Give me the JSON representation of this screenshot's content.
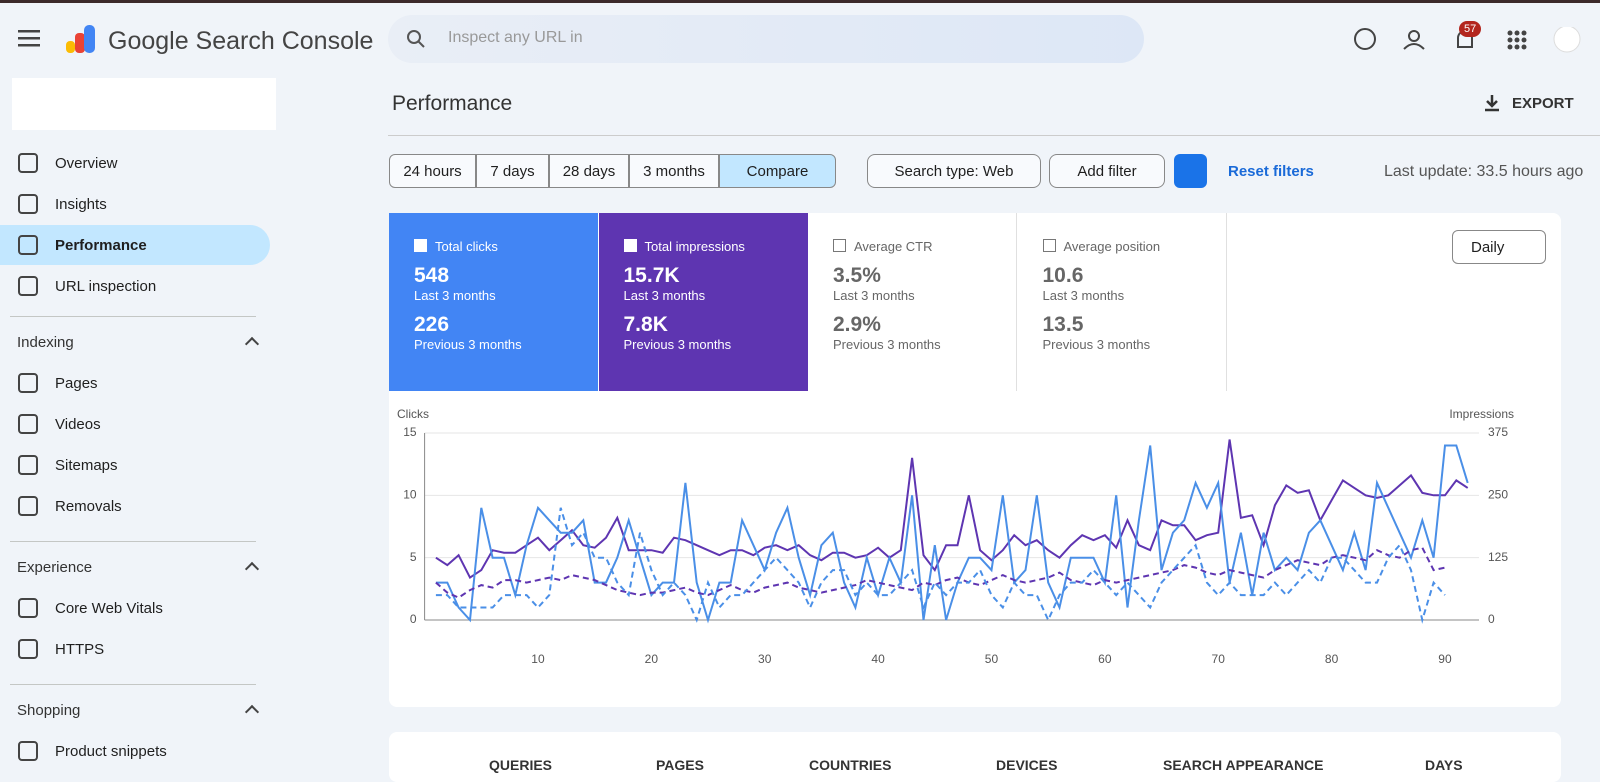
{
  "header": {
    "title": "Google Search Console",
    "search_placeholder": "Inspect any URL in",
    "notifications": 57
  },
  "sidebar": {
    "items": [
      "Overview",
      "Insights",
      "Performance",
      "URL inspection"
    ],
    "sections": [
      {
        "title": "Indexing",
        "items": [
          "Pages",
          "Videos",
          "Sitemaps",
          "Removals"
        ]
      },
      {
        "title": "Experience",
        "items": [
          "Core Web Vitals",
          "HTTPS"
        ]
      },
      {
        "title": "Shopping",
        "items": [
          "Product snippets"
        ]
      }
    ]
  },
  "page": {
    "title": "Performance",
    "export": "EXPORT",
    "date_ranges": [
      "24 hours",
      "7 days",
      "28 days",
      "3 months",
      "Compare"
    ],
    "search_type": "Search type: Web",
    "add_filter": "Add filter",
    "reset": "Reset filters",
    "last_update": "Last update: 33.5 hours ago",
    "granularity": "Daily",
    "metrics": [
      {
        "label": "Total clicks",
        "current": "548",
        "current_period": "Last 3 months",
        "previous": "226",
        "previous_period": "Previous 3 months"
      },
      {
        "label": "Total impressions",
        "current": "15.7K",
        "current_period": "Last 3 months",
        "previous": "7.8K",
        "previous_period": "Previous 3 months"
      },
      {
        "label": "Average CTR",
        "current": "3.5%",
        "current_period": "Last 3 months",
        "previous": "2.9%",
        "previous_period": "Previous 3 months"
      },
      {
        "label": "Average position",
        "current": "10.6",
        "current_period": "Last 3 months",
        "previous": "13.5",
        "previous_period": "Previous 3 months"
      }
    ],
    "tabs": [
      "QUERIES",
      "PAGES",
      "COUNTRIES",
      "DEVICES",
      "SEARCH APPEARANCE",
      "DAYS"
    ]
  },
  "chart_data": {
    "type": "line",
    "ylabel": "Clicks",
    "y2label": "Impressions",
    "grid": true,
    "xlim": [
      0,
      93
    ],
    "xticks": [
      10,
      20,
      30,
      40,
      50,
      60,
      70,
      80,
      90
    ],
    "ylim": [
      0,
      15
    ],
    "yticks": [
      0,
      5,
      10,
      15
    ],
    "y2lim": [
      0,
      375
    ],
    "y2ticks": [
      0,
      125,
      250,
      375
    ],
    "x": [
      1,
      2,
      3,
      4,
      5,
      6,
      7,
      8,
      9,
      10,
      11,
      12,
      13,
      14,
      15,
      16,
      17,
      18,
      19,
      20,
      21,
      22,
      23,
      24,
      25,
      26,
      27,
      28,
      29,
      30,
      31,
      32,
      33,
      34,
      35,
      36,
      37,
      38,
      39,
      40,
      41,
      42,
      43,
      44,
      45,
      46,
      47,
      48,
      49,
      50,
      51,
      52,
      53,
      54,
      55,
      56,
      57,
      58,
      59,
      60,
      61,
      62,
      63,
      64,
      65,
      66,
      67,
      68,
      69,
      70,
      71,
      72,
      73,
      74,
      75,
      76,
      77,
      78,
      79,
      80,
      81,
      82,
      83,
      84,
      85,
      86,
      87,
      88,
      89,
      90,
      91,
      92
    ],
    "series": [
      {
        "color": "#5e35b1",
        "axis": "y2",
        "dashed": false,
        "values": [
          125,
          110,
          130,
          85,
          100,
          140,
          135,
          135,
          150,
          165,
          140,
          160,
          180,
          150,
          145,
          165,
          205,
          140,
          140,
          140,
          135,
          165,
          160,
          150,
          140,
          130,
          140,
          140,
          130,
          145,
          150,
          140,
          150,
          130,
          120,
          135,
          135,
          125,
          130,
          145,
          125,
          140,
          325,
          130,
          100,
          150,
          150,
          250,
          140,
          120,
          140,
          170,
          150,
          160,
          140,
          125,
          150,
          170,
          160,
          170,
          145,
          200,
          150,
          140,
          200,
          190,
          190,
          160,
          170,
          175,
          362,
          205,
          210,
          150,
          230,
          270,
          255,
          260,
          200,
          240,
          280,
          265,
          250,
          245,
          250,
          270,
          290,
          255,
          250,
          250,
          280,
          265
        ]
      },
      {
        "color": "#4a8fe7",
        "axis": "y",
        "dashed": false,
        "values": [
          3,
          3,
          1,
          0,
          9,
          5,
          5,
          2,
          6,
          9,
          8,
          7,
          7,
          8,
          3,
          3,
          5,
          8,
          5,
          2,
          3,
          3,
          11,
          3,
          0,
          3,
          3,
          8,
          6,
          4,
          7,
          9,
          5,
          2,
          6,
          7,
          3,
          1,
          5,
          2,
          5,
          3,
          10,
          0,
          6,
          0,
          3,
          5,
          5,
          4,
          10,
          3,
          4,
          10,
          3,
          1,
          5,
          5,
          5,
          3,
          10,
          1,
          8,
          14,
          4,
          7,
          8,
          11,
          9,
          11,
          3,
          7,
          2,
          7,
          4,
          5,
          4,
          7,
          8,
          6,
          4,
          7,
          4,
          11,
          9,
          7,
          5,
          8,
          5,
          14,
          14,
          11
        ]
      },
      {
        "color": "#5e35b1",
        "axis": "y2",
        "dashed": true,
        "values": [
          75,
          55,
          45,
          60,
          70,
          65,
          80,
          80,
          75,
          80,
          85,
          80,
          90,
          85,
          80,
          70,
          60,
          55,
          50,
          55,
          55,
          60,
          65,
          55,
          50,
          60,
          70,
          60,
          55,
          65,
          70,
          75,
          65,
          60,
          55,
          60,
          65,
          70,
          80,
          75,
          70,
          65,
          60,
          75,
          70,
          80,
          85,
          75,
          70,
          80,
          90,
          80,
          75,
          80,
          85,
          95,
          80,
          75,
          70,
          80,
          75,
          80,
          85,
          90,
          95,
          100,
          110,
          105,
          95,
          90,
          100,
          95,
          90,
          85,
          100,
          110,
          120,
          115,
          110,
          125,
          130,
          125,
          120,
          140,
          130,
          125,
          140,
          145,
          100,
          105,
          null,
          null
        ]
      },
      {
        "color": "#4a8fe7",
        "axis": "y",
        "dashed": true,
        "values": [
          2,
          2,
          1,
          1,
          1,
          1,
          2,
          2,
          2,
          1,
          2,
          9,
          6,
          7,
          5,
          5,
          3,
          2,
          7,
          4,
          2,
          3,
          2,
          0,
          3,
          1,
          2,
          2,
          3,
          4,
          5,
          4,
          3,
          1,
          3,
          4,
          4,
          2,
          3,
          2,
          2,
          3,
          4,
          1,
          3,
          2,
          3,
          3,
          4,
          2,
          1,
          3,
          2,
          2,
          0,
          2,
          3,
          3,
          4,
          3,
          2,
          3,
          2,
          1,
          3,
          4,
          5,
          6,
          3,
          2,
          3,
          2,
          2,
          2,
          3,
          2,
          3,
          4,
          3,
          5,
          5,
          4,
          3,
          3,
          5,
          6,
          4,
          0,
          3,
          2,
          null,
          null
        ]
      }
    ]
  }
}
